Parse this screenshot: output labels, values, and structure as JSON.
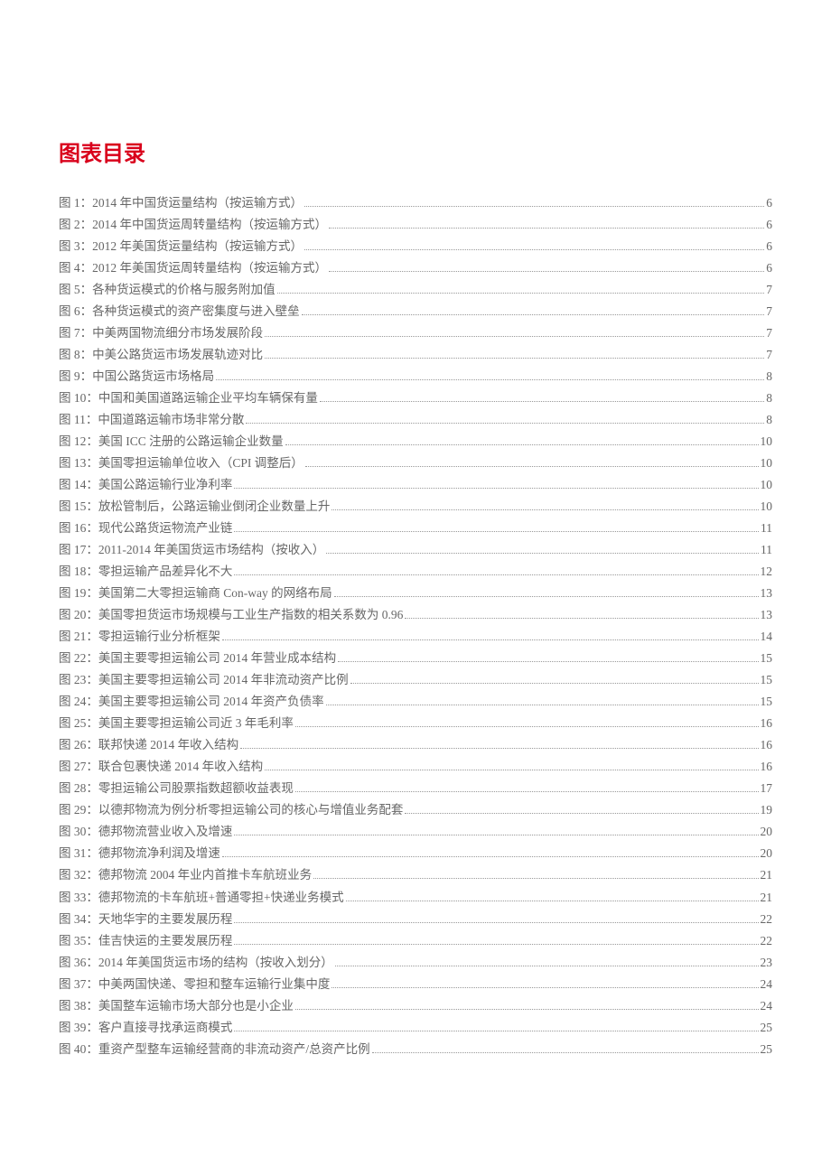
{
  "heading": "图表目录",
  "colors": {
    "heading": "#d9001b",
    "text": "#666666",
    "dots": "#999999",
    "background": "#ffffff"
  },
  "entries": [
    {
      "num": "图 1：",
      "title": "2014 年中国货运量结构（按运输方式）",
      "page": "6"
    },
    {
      "num": "图 2：",
      "title": "2014 年中国货运周转量结构（按运输方式）",
      "page": "6"
    },
    {
      "num": "图 3：",
      "title": "2012 年美国货运量结构（按运输方式）",
      "page": "6"
    },
    {
      "num": "图 4：",
      "title": "2012 年美国货运周转量结构（按运输方式）",
      "page": "6"
    },
    {
      "num": "图 5：",
      "title": "各种货运模式的价格与服务附加值",
      "page": "7"
    },
    {
      "num": "图 6：",
      "title": "各种货运模式的资产密集度与进入壁垒",
      "page": "7"
    },
    {
      "num": "图 7：",
      "title": "中美两国物流细分市场发展阶段",
      "page": "7"
    },
    {
      "num": "图 8：",
      "title": "中美公路货运市场发展轨迹对比",
      "page": "7"
    },
    {
      "num": "图 9：",
      "title": "中国公路货运市场格局",
      "page": "8"
    },
    {
      "num": "图 10：",
      "title": "中国和美国道路运输企业平均车辆保有量",
      "page": "8"
    },
    {
      "num": "图 11：",
      "title": "中国道路运输市场非常分散",
      "page": "8"
    },
    {
      "num": "图 12：",
      "title": "美国 ICC 注册的公路运输企业数量",
      "page": "10"
    },
    {
      "num": "图 13：",
      "title": "美国零担运输单位收入（CPI 调整后）",
      "page": "10"
    },
    {
      "num": "图 14：",
      "title": "美国公路运输行业净利率",
      "page": "10"
    },
    {
      "num": "图 15：",
      "title": "放松管制后，公路运输业倒闭企业数量上升",
      "page": "10"
    },
    {
      "num": "图 16：",
      "title": "现代公路货运物流产业链",
      "page": "11"
    },
    {
      "num": "图 17：",
      "title": "2011-2014 年美国货运市场结构（按收入）",
      "page": "11"
    },
    {
      "num": "图 18：",
      "title": "零担运输产品差异化不大",
      "page": "12"
    },
    {
      "num": "图 19：",
      "title": "美国第二大零担运输商 Con-way 的网络布局",
      "page": "13"
    },
    {
      "num": "图 20：",
      "title": "美国零担货运市场规模与工业生产指数的相关系数为 0.96",
      "page": "13"
    },
    {
      "num": "图 21：",
      "title": "零担运输行业分析框架",
      "page": "14"
    },
    {
      "num": "图 22：",
      "title": "美国主要零担运输公司 2014 年营业成本结构",
      "page": "15"
    },
    {
      "num": "图 23：",
      "title": "美国主要零担运输公司 2014 年非流动资产比例",
      "page": "15"
    },
    {
      "num": "图 24：",
      "title": "美国主要零担运输公司 2014 年资产负债率",
      "page": "15"
    },
    {
      "num": "图 25：",
      "title": "美国主要零担运输公司近 3 年毛利率",
      "page": "16"
    },
    {
      "num": "图 26：",
      "title": "联邦快递 2014 年收入结构",
      "page": "16"
    },
    {
      "num": "图 27：",
      "title": "联合包裹快递 2014 年收入结构",
      "page": "16"
    },
    {
      "num": "图 28：",
      "title": "零担运输公司股票指数超额收益表现",
      "page": "17"
    },
    {
      "num": "图 29：",
      "title": "以德邦物流为例分析零担运输公司的核心与增值业务配套",
      "page": "19"
    },
    {
      "num": "图 30：",
      "title": "德邦物流营业收入及增速",
      "page": "20"
    },
    {
      "num": "图 31：",
      "title": "德邦物流净利润及增速",
      "page": "20"
    },
    {
      "num": "图 32：",
      "title": "德邦物流 2004 年业内首推卡车航班业务",
      "page": "21"
    },
    {
      "num": "图 33：",
      "title": "德邦物流的卡车航班+普通零担+快递业务模式",
      "page": "21"
    },
    {
      "num": "图 34：",
      "title": "天地华宇的主要发展历程",
      "page": "22"
    },
    {
      "num": "图 35：",
      "title": "佳吉快运的主要发展历程",
      "page": "22"
    },
    {
      "num": "图 36：",
      "title": "2014 年美国货运市场的结构（按收入划分）",
      "page": "23"
    },
    {
      "num": "图 37：",
      "title": "中美两国快递、零担和整车运输行业集中度",
      "page": "24"
    },
    {
      "num": "图 38：",
      "title": "美国整车运输市场大部分也是小企业",
      "page": "24"
    },
    {
      "num": "图 39：",
      "title": "客户直接寻找承运商模式",
      "page": "25"
    },
    {
      "num": "图 40：",
      "title": "重资产型整车运输经营商的非流动资产/总资产比例",
      "page": "25"
    }
  ]
}
